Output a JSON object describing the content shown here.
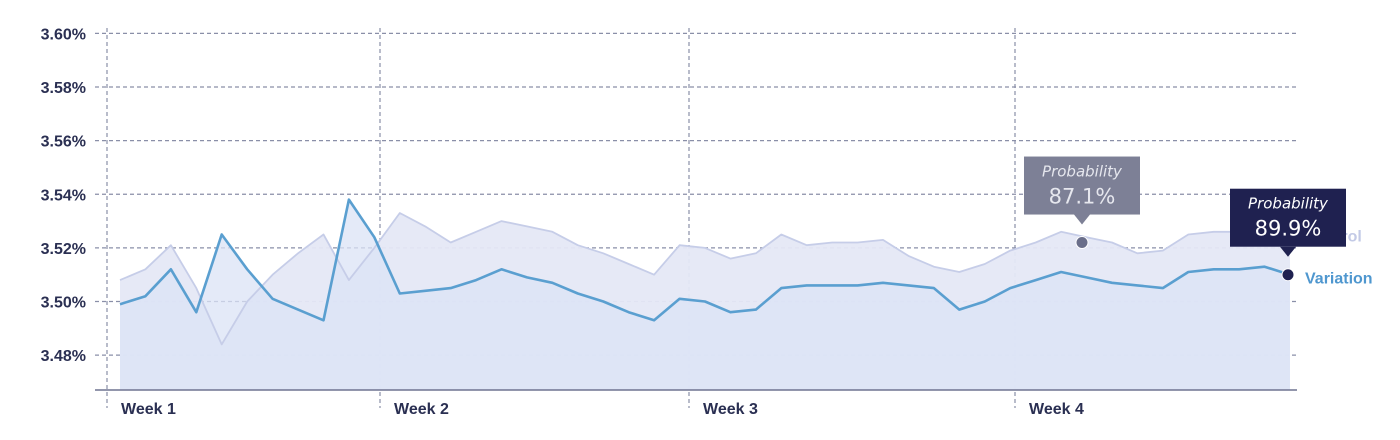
{
  "chart_data": {
    "type": "area",
    "categories": [
      "Week 1",
      "Week 2",
      "Week 3",
      "Week 4"
    ],
    "y_ticks": [
      "3.48%",
      "3.50%",
      "3.52%",
      "3.54%",
      "3.56%",
      "3.58%",
      "3.60%"
    ],
    "ylim": [
      3.467,
      3.605
    ],
    "grid": true,
    "x": [
      1,
      2,
      3,
      4,
      5,
      6,
      7,
      8,
      9,
      10,
      11,
      12,
      13,
      14,
      15,
      16,
      17,
      18,
      19,
      20,
      21,
      22,
      23,
      24,
      25,
      26,
      27,
      28,
      29,
      30,
      31,
      32,
      33,
      34,
      35,
      36,
      37,
      38,
      39,
      40,
      41,
      42,
      43,
      44,
      45,
      46,
      47
    ],
    "series": [
      {
        "name": "Control",
        "color": "#c6cde8",
        "values": [
          3.508,
          3.512,
          3.521,
          3.505,
          3.484,
          3.5,
          3.51,
          3.518,
          3.525,
          3.508,
          3.52,
          3.533,
          3.528,
          3.522,
          3.526,
          3.53,
          3.528,
          3.526,
          3.521,
          3.518,
          3.514,
          3.51,
          3.521,
          3.52,
          3.516,
          3.518,
          3.525,
          3.521,
          3.522,
          3.522,
          3.523,
          3.517,
          3.513,
          3.511,
          3.514,
          3.519,
          3.522,
          3.526,
          3.524,
          3.522,
          3.518,
          3.519,
          3.525,
          3.526,
          3.526,
          3.527,
          3.525
        ]
      },
      {
        "name": "Variation",
        "color": "#5a9fd0",
        "values": [
          3.499,
          3.502,
          3.512,
          3.496,
          3.525,
          3.512,
          3.501,
          3.497,
          3.493,
          3.538,
          3.524,
          3.503,
          3.504,
          3.505,
          3.508,
          3.512,
          3.509,
          3.507,
          3.503,
          3.5,
          3.496,
          3.493,
          3.501,
          3.5,
          3.496,
          3.497,
          3.505,
          3.506,
          3.506,
          3.506,
          3.507,
          3.506,
          3.505,
          3.497,
          3.5,
          3.505,
          3.508,
          3.511,
          3.509,
          3.507,
          3.506,
          3.505,
          3.511,
          3.512,
          3.512,
          3.513,
          3.51
        ]
      }
    ],
    "annotations": [
      {
        "series": "Control",
        "title": "Probability",
        "value": "87.1%",
        "box_color": "#7d8096",
        "text_color": "#e6e7ee",
        "marker_color": "#6a6e8a"
      },
      {
        "series": "Variation",
        "title": "Probability",
        "value": "89.9%",
        "box_color": "#1f2150",
        "text_color": "#ffffff",
        "marker_color": "#1f2150"
      }
    ]
  }
}
